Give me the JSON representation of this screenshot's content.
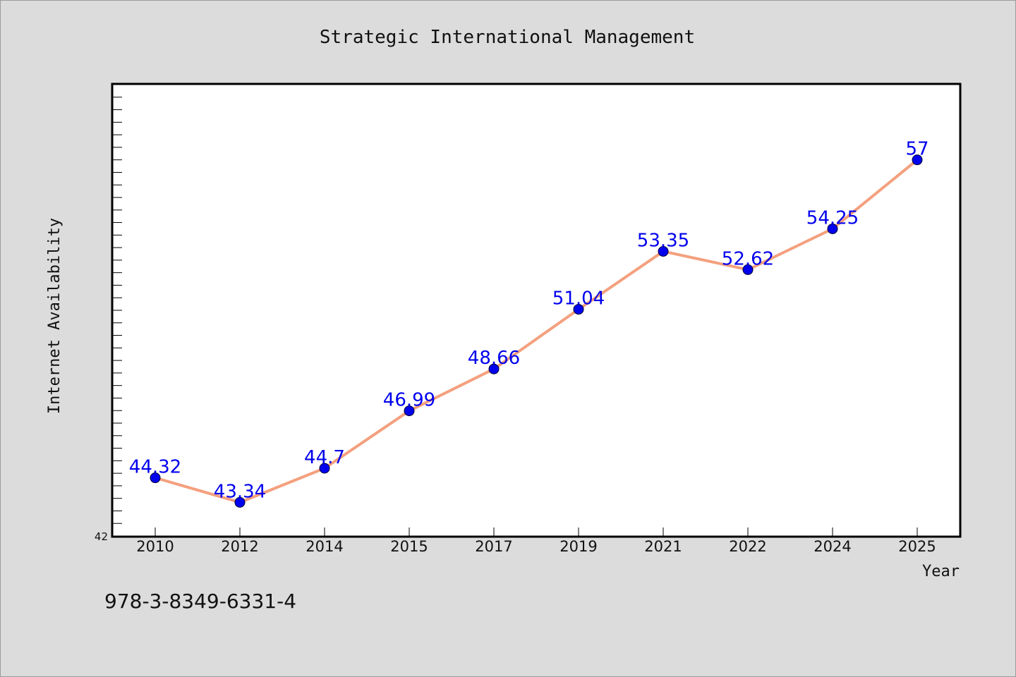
{
  "chart_data": {
    "type": "line",
    "title": "Strategic International Management",
    "xlabel": "Year",
    "ylabel": "Internet Availability",
    "categories": [
      "2010",
      "2012",
      "2014",
      "2015",
      "2017",
      "2019",
      "2021",
      "2022",
      "2024",
      "2025"
    ],
    "series": [
      {
        "values": [
          44.32,
          43.34,
          44.7,
          46.99,
          48.66,
          51.04,
          53.35,
          52.62,
          54.25,
          57
        ],
        "labels": [
          "44.32",
          "43.34",
          "44.7",
          "46.99",
          "48.66",
          "51.04",
          "53.35",
          "52.62",
          "54.25",
          "57"
        ]
      }
    ],
    "ylim": [
      42,
      60
    ],
    "y_tick_labels": [
      "42"
    ],
    "grid": false,
    "legend": "none"
  },
  "footer": {
    "isbn": "978-3-8349-6331-4"
  },
  "colors": {
    "background": "#dcdcdc",
    "plot_background": "#ffffff",
    "line": "#f4a07e",
    "marker": "#0000ee",
    "data_label": "#0000ee",
    "axis": "#000000"
  }
}
